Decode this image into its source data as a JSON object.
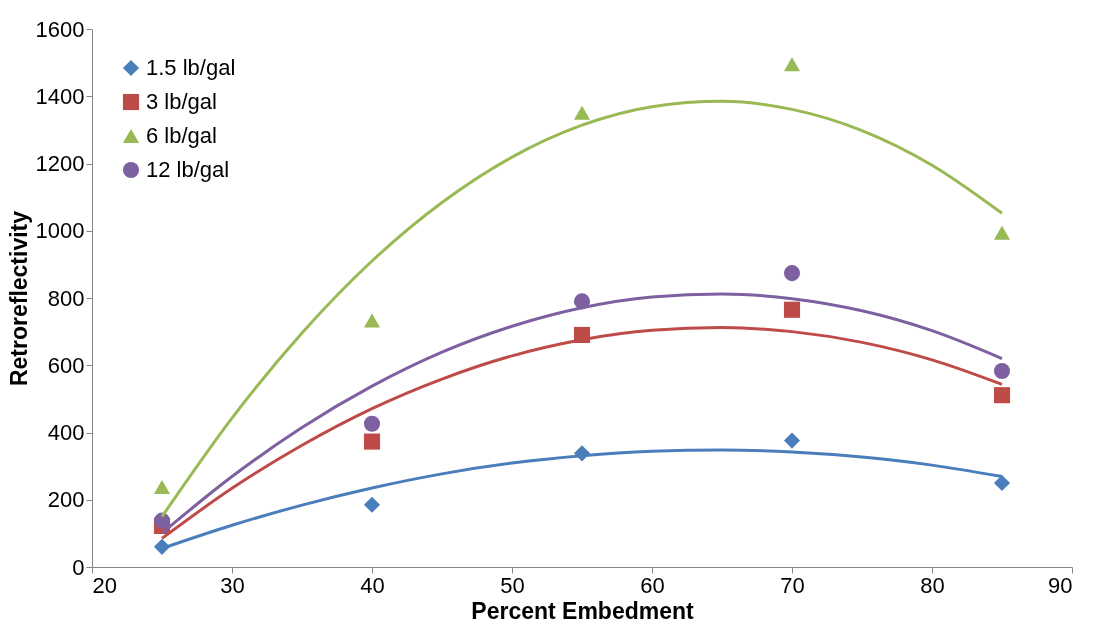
{
  "chart_data": {
    "type": "scatter",
    "xlabel": "Percent Embedment",
    "ylabel": "Retroreflectivity",
    "xlim": [
      20,
      90
    ],
    "xticks": [
      20,
      30,
      40,
      50,
      60,
      70,
      80,
      90
    ],
    "ylim": [
      0,
      1600
    ],
    "yticks": [
      0,
      200,
      400,
      600,
      800,
      1000,
      1200,
      1400,
      1600
    ],
    "grid": false,
    "legend": "top left",
    "series": [
      {
        "name": "1.5 lb/gal",
        "color": "#4a7ebb",
        "marker": "diamond",
        "x": [
          25,
          40,
          55,
          70,
          85
        ],
        "values": [
          60,
          185,
          338,
          376,
          250
        ]
      },
      {
        "name": "3 lb/gal",
        "color": "#be4b48",
        "marker": "square",
        "x": [
          25,
          40,
          55,
          70,
          85
        ],
        "values": [
          122,
          373,
          690,
          765,
          511
        ]
      },
      {
        "name": "6 lb/gal",
        "color": "#98b954",
        "marker": "triangle",
        "x": [
          25,
          40,
          55,
          70,
          85
        ],
        "values": [
          238,
          733,
          1351,
          1495,
          994
        ]
      },
      {
        "name": "12 lb/gal",
        "color": "#7d60a0",
        "marker": "circle",
        "x": [
          25,
          40,
          55,
          70,
          85
        ],
        "values": [
          138,
          426,
          790,
          874,
          583
        ]
      },
      {
        "type": "line",
        "color": "#4a7ebb",
        "x": [
          25,
          30,
          35,
          40,
          45,
          50,
          55,
          60,
          65,
          70,
          75,
          80,
          85
        ],
        "values": [
          55,
          124,
          184,
          235,
          277,
          309,
          331,
          344,
          348,
          342,
          327,
          303,
          269
        ]
      },
      {
        "type": "line",
        "color": "#be4b48",
        "x": [
          25,
          30,
          35,
          40,
          45,
          50,
          55,
          60,
          65,
          70,
          75,
          80,
          85
        ],
        "values": [
          85,
          234,
          362,
          471,
          559,
          628,
          676,
          704,
          712,
          700,
          668,
          616,
          543
        ]
      },
      {
        "type": "line",
        "color": "#98b954",
        "x": [
          25,
          30,
          35,
          40,
          45,
          50,
          55,
          60,
          65,
          70,
          75,
          80,
          85
        ],
        "values": [
          150,
          443,
          696,
          910,
          1084,
          1219,
          1314,
          1369,
          1385,
          1361,
          1298,
          1195,
          1052
        ]
      },
      {
        "type": "line",
        "color": "#7d60a0",
        "x": [
          25,
          30,
          35,
          40,
          45,
          50,
          55,
          60,
          65,
          70,
          75,
          80,
          85
        ],
        "values": [
          101,
          269,
          415,
          538,
          639,
          716,
          771,
          803,
          812,
          798,
          762,
          703,
          620
        ]
      }
    ]
  }
}
